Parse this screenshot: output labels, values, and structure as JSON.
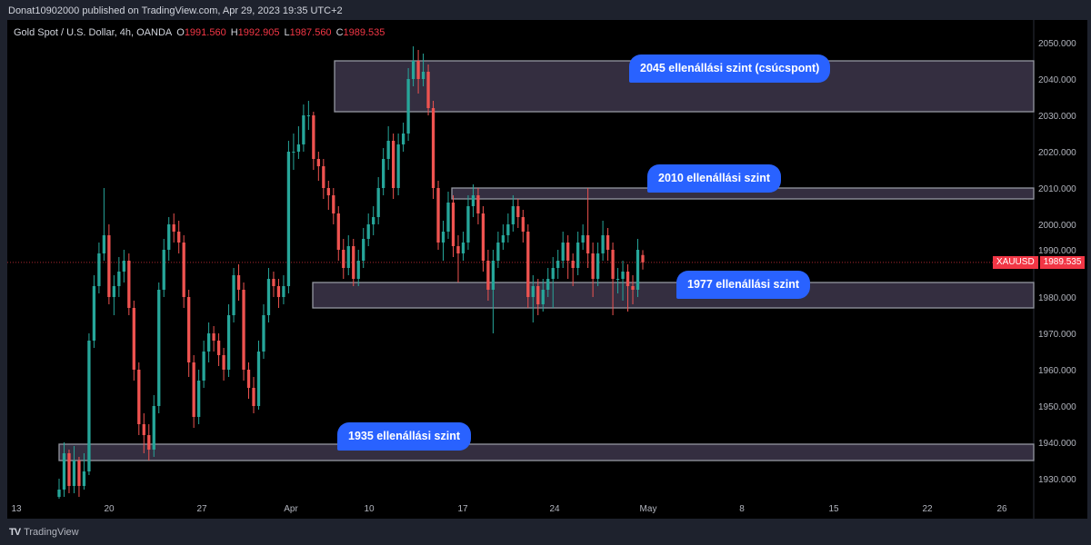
{
  "publish_line": "Donat10902000 published on TradingView.com, Apr 29, 2023 19:35 UTC+2",
  "legend": {
    "symbol_desc": "Gold Spot / U.S. Dollar, 4h, OANDA",
    "o_label": "O",
    "o": "1991.560",
    "h_label": "H",
    "h": "1992.905",
    "l_label": "L",
    "l": "1987.560",
    "c_label": "C",
    "c": "1989.535"
  },
  "price_tag": {
    "symbol": "XAUUSD",
    "price": "1989.535"
  },
  "brand": {
    "logo": "TV",
    "name": "TradingView"
  },
  "colors": {
    "up": "#26a69a",
    "down": "#ef5350",
    "zone_fill": "#3a3347",
    "zone_border": "#9598a1",
    "note_bg": "#2962ff",
    "last_price": "#f23645"
  },
  "annotations": [
    {
      "text": "2045 ellenállási szint (csúcspont)",
      "price": 2045
    },
    {
      "text": "2010 ellenállási szint",
      "price": 2010
    },
    {
      "text": "1977 ellenállási szint",
      "price": 1977
    },
    {
      "text": "1935 ellenállási szint",
      "price": 1935
    }
  ],
  "chart_data": {
    "type": "candlestick",
    "title": "Gold Spot / U.S. Dollar, 4h, OANDA",
    "ylim": [
      1925,
      2053
    ],
    "y_ticks": [
      "2050.000",
      "2040.000",
      "2030.000",
      "2020.000",
      "2010.000",
      "2000.000",
      "1990.000",
      "1980.000",
      "1970.000",
      "1960.000",
      "1950.000",
      "1940.000",
      "1930.000"
    ],
    "x_ticks": [
      "13",
      "20",
      "27",
      "Apr",
      "10",
      "17",
      "24",
      "May",
      "8",
      "15",
      "22",
      "26"
    ],
    "last_price": 1989.535,
    "zones": [
      {
        "low": 2031,
        "high": 2045
      },
      {
        "low": 2007,
        "high": 2010
      },
      {
        "low": 1977,
        "high": 1984
      },
      {
        "low": 1935,
        "high": 1939.5
      }
    ],
    "candles": [
      [
        1925,
        1930,
        1923,
        1927
      ],
      [
        1927,
        1940,
        1925,
        1937
      ],
      [
        1937,
        1938,
        1926,
        1928
      ],
      [
        1928,
        1939,
        1926,
        1935
      ],
      [
        1935,
        1936,
        1925,
        1928
      ],
      [
        1928,
        1937,
        1927,
        1932
      ],
      [
        1932,
        1970,
        1931,
        1968
      ],
      [
        1968,
        1986,
        1966,
        1983
      ],
      [
        1983,
        1995,
        1981,
        1992
      ],
      [
        1992,
        2010,
        1990,
        1997
      ],
      [
        1997,
        2000,
        1978,
        1980
      ],
      [
        1980,
        1986,
        1975,
        1983
      ],
      [
        1983,
        1991,
        1980,
        1987
      ],
      [
        1987,
        1993,
        1984,
        1990
      ],
      [
        1990,
        1992,
        1975,
        1977
      ],
      [
        1977,
        1979,
        1957,
        1960
      ],
      [
        1960,
        1962,
        1942,
        1945
      ],
      [
        1945,
        1948,
        1937,
        1942
      ],
      [
        1942,
        1945,
        1935,
        1938
      ],
      [
        1938,
        1953,
        1936,
        1950
      ],
      [
        1950,
        1984,
        1948,
        1982
      ],
      [
        1982,
        1996,
        1980,
        1993
      ],
      [
        1993,
        2002,
        1990,
        2000
      ],
      [
        2000,
        2003,
        1995,
        1998
      ],
      [
        1998,
        2001,
        1992,
        1995
      ],
      [
        1995,
        1997,
        1977,
        1980
      ],
      [
        1980,
        1982,
        1958,
        1962
      ],
      [
        1962,
        1964,
        1944,
        1947
      ],
      [
        1947,
        1960,
        1945,
        1957
      ],
      [
        1957,
        1968,
        1955,
        1965
      ],
      [
        1965,
        1973,
        1962,
        1970
      ],
      [
        1970,
        1972,
        1965,
        1968
      ],
      [
        1968,
        1970,
        1961,
        1964
      ],
      [
        1964,
        1966,
        1957,
        1960
      ],
      [
        1960,
        1978,
        1958,
        1975
      ],
      [
        1975,
        1988,
        1973,
        1986
      ],
      [
        1986,
        1989,
        1979,
        1982
      ],
      [
        1982,
        1984,
        1957,
        1960
      ],
      [
        1960,
        1962,
        1952,
        1955
      ],
      [
        1955,
        1958,
        1948,
        1950
      ],
      [
        1950,
        1968,
        1949,
        1965
      ],
      [
        1965,
        1978,
        1963,
        1975
      ],
      [
        1975,
        1988,
        1973,
        1985
      ],
      [
        1985,
        1987,
        1980,
        1983
      ],
      [
        1983,
        1985,
        1977,
        1980
      ],
      [
        1980,
        1986,
        1978,
        1983
      ],
      [
        1983,
        2023,
        1981,
        2020
      ],
      [
        2020,
        2025,
        2015,
        2020
      ],
      [
        2020,
        2027,
        2018,
        2022
      ],
      [
        2022,
        2033,
        2020,
        2030
      ],
      [
        2030,
        2034,
        2026,
        2030
      ],
      [
        2030,
        2031,
        2015,
        2018
      ],
      [
        2018,
        2020,
        2012,
        2016
      ],
      [
        2016,
        2018,
        2007,
        2010
      ],
      [
        2010,
        2012,
        2004,
        2008
      ],
      [
        2008,
        2010,
        2000,
        2003
      ],
      [
        2003,
        2005,
        1990,
        1993
      ],
      [
        1993,
        1996,
        1985,
        1988
      ],
      [
        1988,
        1997,
        1986,
        1994
      ],
      [
        1994,
        1996,
        1983,
        1985
      ],
      [
        1985,
        1993,
        1983,
        1990
      ],
      [
        1990,
        1999,
        1988,
        1996
      ],
      [
        1996,
        2003,
        1994,
        2000
      ],
      [
        2000,
        2005,
        1997,
        2002
      ],
      [
        2002,
        2013,
        2000,
        2010
      ],
      [
        2010,
        2021,
        2008,
        2018
      ],
      [
        2018,
        2027,
        2015,
        2023
      ],
      [
        2023,
        2025,
        2007,
        2010
      ],
      [
        2010,
        2025,
        2008,
        2022
      ],
      [
        2022,
        2028,
        2020,
        2025
      ],
      [
        2025,
        2043,
        2023,
        2040
      ],
      [
        2040,
        2049,
        2038,
        2045
      ],
      [
        2045,
        2048,
        2036,
        2040
      ],
      [
        2040,
        2047,
        2038,
        2042
      ],
      [
        2042,
        2044,
        2030,
        2032
      ],
      [
        2032,
        2034,
        2007,
        2010
      ],
      [
        2010,
        2012,
        1993,
        1995
      ],
      [
        1995,
        2001,
        1990,
        1998
      ],
      [
        1998,
        2009,
        1996,
        2006
      ],
      [
        2006,
        2008,
        1991,
        1994
      ],
      [
        1994,
        1997,
        1984,
        1992
      ],
      [
        1992,
        1998,
        1990,
        1995
      ],
      [
        1995,
        2008,
        1993,
        2005
      ],
      [
        2005,
        2011,
        2002,
        2008
      ],
      [
        2008,
        2010,
        2000,
        2003
      ],
      [
        2003,
        2005,
        1987,
        1990
      ],
      [
        1990,
        1993,
        1979,
        1982
      ],
      [
        1982,
        1993,
        1970,
        1990
      ],
      [
        1990,
        1998,
        1988,
        1995
      ],
      [
        1995,
        2000,
        1993,
        1997
      ],
      [
        1997,
        2003,
        1995,
        2000
      ],
      [
        2000,
        2008,
        1998,
        2005
      ],
      [
        2005,
        2007,
        1999,
        2002
      ],
      [
        2002,
        2004,
        1995,
        1998
      ],
      [
        1998,
        2000,
        1977,
        1980
      ],
      [
        1980,
        1986,
        1973,
        1983
      ],
      [
        1983,
        1985,
        1975,
        1978
      ],
      [
        1978,
        1985,
        1976,
        1982
      ],
      [
        1982,
        1988,
        1980,
        1985
      ],
      [
        1985,
        1991,
        1977,
        1988
      ],
      [
        1988,
        1993,
        1985,
        1990
      ],
      [
        1990,
        1998,
        1988,
        1995
      ],
      [
        1995,
        1997,
        1985,
        1990
      ],
      [
        1990,
        1992,
        1983,
        1988
      ],
      [
        1988,
        1998,
        1986,
        1995
      ],
      [
        1995,
        2000,
        1993,
        1997
      ],
      [
        1997,
        2010,
        1988,
        1992
      ],
      [
        1992,
        1995,
        1980,
        1985
      ],
      [
        1985,
        1995,
        1983,
        1992
      ],
      [
        1992,
        2001,
        1990,
        1997
      ],
      [
        1997,
        1999,
        1990,
        1993
      ],
      [
        1993,
        1995,
        1975,
        1985
      ],
      [
        1985,
        1988,
        1981,
        1985
      ],
      [
        1985,
        1990,
        1979,
        1987
      ],
      [
        1987,
        1989,
        1976,
        1983
      ],
      [
        1983,
        1986,
        1978,
        1982
      ],
      [
        1982,
        1996,
        1980,
        1993
      ],
      [
        1991.56,
        1992.905,
        1987.56,
        1989.535
      ]
    ]
  }
}
